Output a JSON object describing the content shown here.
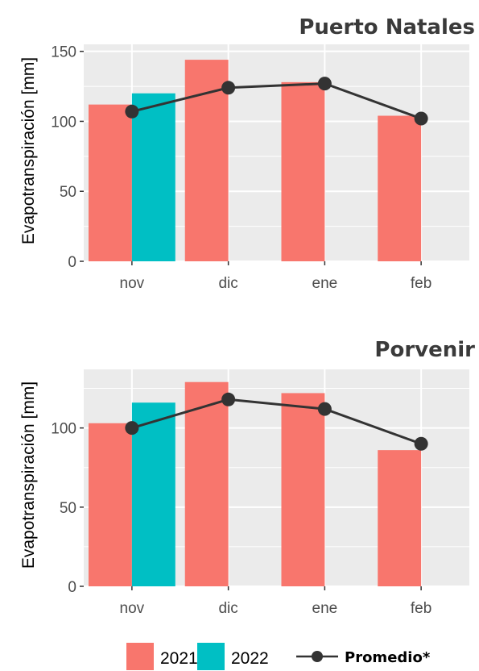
{
  "chart_data": [
    {
      "type": "bar",
      "title": "Puerto Natales",
      "ylabel": "Evapotranspiración [mm]",
      "categories": [
        "nov",
        "dic",
        "ene",
        "feb"
      ],
      "ylim": [
        0,
        155
      ],
      "yticks": [
        "0",
        "50",
        "100",
        "150"
      ],
      "series": [
        {
          "name": "2021",
          "values": [
            112,
            144,
            128,
            104
          ]
        },
        {
          "name": "2022",
          "values": [
            120,
            null,
            null,
            null
          ]
        }
      ],
      "line": {
        "name": "Promedio*",
        "values": [
          107,
          124,
          127,
          102
        ]
      }
    },
    {
      "type": "bar",
      "title": "Porvenir",
      "ylabel": "Evapotranspiración [mm]",
      "categories": [
        "nov",
        "dic",
        "ene",
        "feb"
      ],
      "ylim": [
        0,
        137
      ],
      "yticks": [
        "0",
        "50",
        "100"
      ],
      "series": [
        {
          "name": "2021",
          "values": [
            103,
            129,
            122,
            86
          ]
        },
        {
          "name": "2022",
          "values": [
            116,
            null,
            null,
            null
          ]
        }
      ],
      "line": {
        "name": "Promedio*",
        "values": [
          100,
          118,
          112,
          90
        ]
      }
    }
  ],
  "legend": {
    "placement": "bottom",
    "items": [
      {
        "label": "2021",
        "kind": "box",
        "color": "#f8766d"
      },
      {
        "label": "2022",
        "kind": "box",
        "color": "#00bfc4"
      },
      {
        "label": "Promedio*",
        "kind": "line",
        "color": "#333333"
      }
    ]
  },
  "colors": {
    "panel": "#ebebeb",
    "grid": "#ffffff",
    "bar2021": "#f8766d",
    "bar2022": "#00bfc4",
    "line": "#333333"
  }
}
